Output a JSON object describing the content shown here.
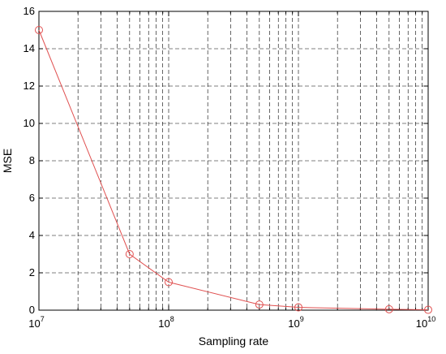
{
  "chart_data": {
    "type": "line",
    "xlabel": "Sampling rate",
    "ylabel": "MSE",
    "xscale": "log",
    "xlim": [
      10000000,
      10000000000
    ],
    "ylim": [
      0,
      16
    ],
    "grid": true,
    "yticks": [
      "0",
      "2",
      "4",
      "6",
      "8",
      "10",
      "12",
      "14",
      "16"
    ],
    "xticks": [
      {
        "base": "10",
        "exp": "7",
        "value": 10000000
      },
      {
        "base": "10",
        "exp": "8",
        "value": 100000000
      },
      {
        "base": "10",
        "exp": "9",
        "value": 1000000000
      },
      {
        "base": "10",
        "exp": "10",
        "value": 10000000000
      }
    ],
    "series": [
      {
        "color": "#e05050",
        "marker": "circle",
        "x": [
          10000000,
          50000000,
          100000000,
          500000000,
          1000000000,
          5000000000,
          10000000000
        ],
        "y": [
          15.0,
          3.0,
          1.5,
          0.3,
          0.15,
          0.05,
          0.02
        ]
      }
    ]
  }
}
